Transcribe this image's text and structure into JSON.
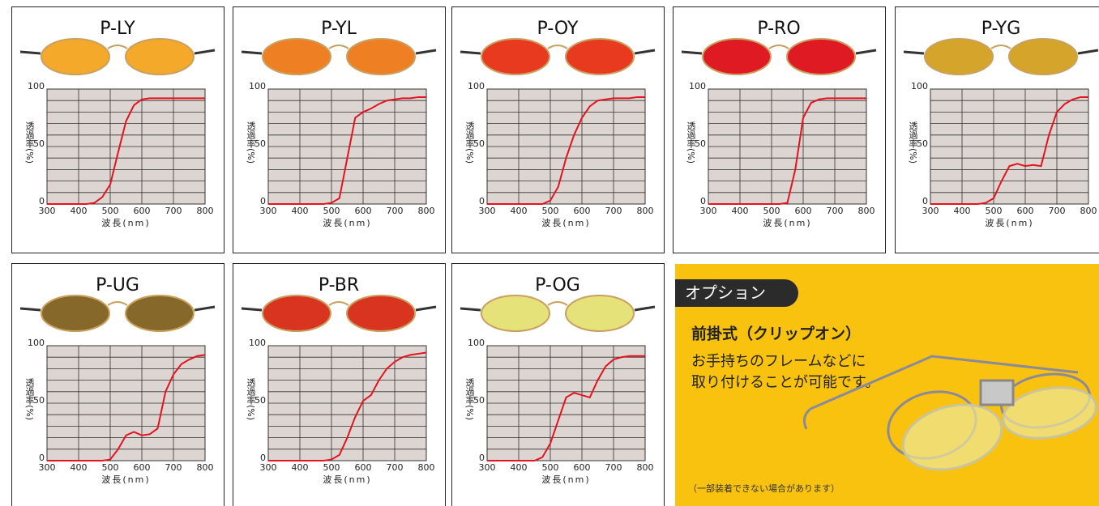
{
  "chart_data": [
    {
      "type": "line",
      "title": "P-LY",
      "lens_color": "#f4a92a",
      "plot_color": "#dcd5d1",
      "grid": true,
      "x_label": "波長(nm)",
      "y_label": "透過率(%)",
      "x": [
        300,
        325,
        350,
        375,
        400,
        425,
        450,
        475,
        500,
        525,
        550,
        575,
        600,
        625,
        650,
        675,
        700,
        725,
        750,
        775,
        800
      ],
      "series": [
        {
          "color": "#e3141e",
          "values": [
            0,
            0,
            0,
            0,
            0,
            0,
            1,
            6,
            17,
            45,
            72,
            86,
            91,
            92,
            92,
            92,
            92,
            92,
            92,
            92,
            92
          ]
        }
      ],
      "xlim": [
        300,
        800
      ],
      "xticks": [
        300,
        400,
        500,
        600,
        700,
        800
      ],
      "ylim": [
        0,
        100
      ],
      "yticks": [
        0,
        50,
        100
      ],
      "minor_yticks": [
        10,
        20,
        30,
        40,
        60,
        70,
        80,
        90
      ]
    },
    {
      "type": "line",
      "title": "P-YL",
      "lens_color": "#ee7f22",
      "plot_color": "#dcd5d1",
      "grid": true,
      "x_label": "波長(nm)",
      "y_label": "透過率(%)",
      "x": [
        300,
        325,
        350,
        375,
        400,
        425,
        450,
        475,
        500,
        525,
        550,
        575,
        600,
        625,
        650,
        675,
        700,
        725,
        750,
        775,
        800
      ],
      "series": [
        {
          "color": "#e3141e",
          "values": [
            0,
            0,
            0,
            0,
            0,
            0,
            0,
            0,
            1,
            5,
            40,
            75,
            80,
            83,
            87,
            90,
            91,
            92,
            92,
            93,
            93
          ]
        }
      ],
      "xlim": [
        300,
        800
      ],
      "xticks": [
        300,
        400,
        500,
        600,
        700,
        800
      ],
      "ylim": [
        0,
        100
      ],
      "yticks": [
        0,
        50,
        100
      ],
      "minor_yticks": [
        10,
        20,
        30,
        40,
        60,
        70,
        80,
        90
      ]
    },
    {
      "type": "line",
      "title": "P-OY",
      "lens_color": "#e73a1f",
      "plot_color": "#dcd5d1",
      "grid": true,
      "x_label": "波長(nm)",
      "y_label": "透過率(%)",
      "x": [
        300,
        325,
        350,
        375,
        400,
        425,
        450,
        475,
        500,
        525,
        550,
        575,
        600,
        625,
        650,
        675,
        700,
        725,
        750,
        775,
        800
      ],
      "series": [
        {
          "color": "#e3141e",
          "values": [
            0,
            0,
            0,
            0,
            0,
            0,
            0,
            0,
            3,
            15,
            40,
            60,
            75,
            85,
            90,
            91,
            92,
            92,
            92,
            93,
            93
          ]
        }
      ],
      "xlim": [
        300,
        800
      ],
      "xticks": [
        300,
        400,
        500,
        600,
        700,
        800
      ],
      "ylim": [
        0,
        100
      ],
      "yticks": [
        0,
        50,
        100
      ],
      "minor_yticks": [
        10,
        20,
        30,
        40,
        60,
        70,
        80,
        90
      ]
    },
    {
      "type": "line",
      "title": "P-RO",
      "lens_color": "#e01a22",
      "plot_color": "#dcd5d1",
      "grid": true,
      "x_label": "波長(nm)",
      "y_label": "透過率(%)",
      "x": [
        300,
        325,
        350,
        375,
        400,
        425,
        450,
        475,
        500,
        525,
        550,
        575,
        600,
        625,
        650,
        675,
        700,
        725,
        750,
        775,
        800
      ],
      "series": [
        {
          "color": "#e3141e",
          "values": [
            0,
            0,
            0,
            0,
            0,
            0,
            0,
            0,
            0,
            0,
            1,
            30,
            75,
            88,
            91,
            92,
            92,
            92,
            92,
            92,
            92
          ]
        }
      ],
      "xlim": [
        300,
        800
      ],
      "xticks": [
        300,
        400,
        500,
        600,
        700,
        800
      ],
      "ylim": [
        0,
        100
      ],
      "yticks": [
        0,
        50,
        100
      ],
      "minor_yticks": [
        10,
        20,
        30,
        40,
        60,
        70,
        80,
        90
      ]
    },
    {
      "type": "line",
      "title": "P-YG",
      "lens_color": "#d4a52a",
      "plot_color": "#dcd5d1",
      "grid": true,
      "x_label": "波長(nm)",
      "y_label": "透過率(%)",
      "x": [
        300,
        325,
        350,
        375,
        400,
        425,
        450,
        475,
        500,
        525,
        550,
        575,
        600,
        625,
        650,
        675,
        700,
        725,
        750,
        775,
        800
      ],
      "series": [
        {
          "color": "#e3141e",
          "values": [
            0,
            0,
            0,
            0,
            0,
            0,
            0,
            1,
            5,
            20,
            33,
            35,
            33,
            34,
            33,
            60,
            80,
            87,
            91,
            93,
            93
          ]
        }
      ],
      "xlim": [
        300,
        800
      ],
      "xticks": [
        300,
        400,
        500,
        600,
        700,
        800
      ],
      "ylim": [
        0,
        100
      ],
      "yticks": [
        0,
        50,
        100
      ],
      "minor_yticks": [
        10,
        20,
        30,
        40,
        60,
        70,
        80,
        90
      ]
    },
    {
      "type": "line",
      "title": "P-UG",
      "lens_color": "#86682a",
      "plot_color": "#dcd5d1",
      "grid": true,
      "x_label": "波長(nm)",
      "y_label": "透過率(%)",
      "x": [
        300,
        325,
        350,
        375,
        400,
        425,
        450,
        475,
        500,
        525,
        550,
        575,
        600,
        625,
        650,
        675,
        700,
        725,
        750,
        775,
        800
      ],
      "series": [
        {
          "color": "#e3141e",
          "values": [
            0,
            0,
            0,
            0,
            0,
            0,
            0,
            0,
            1,
            10,
            22,
            25,
            22,
            23,
            28,
            60,
            75,
            84,
            88,
            91,
            92
          ]
        }
      ],
      "xlim": [
        300,
        800
      ],
      "xticks": [
        300,
        400,
        500,
        600,
        700,
        800
      ],
      "ylim": [
        0,
        100
      ],
      "yticks": [
        0,
        50,
        100
      ],
      "minor_yticks": [
        10,
        20,
        30,
        40,
        60,
        70,
        80,
        90
      ]
    },
    {
      "type": "line",
      "title": "P-BR",
      "lens_color": "#d83420",
      "plot_color": "#dcd5d1",
      "grid": true,
      "x_label": "波長(nm)",
      "y_label": "透過率(%)",
      "x": [
        300,
        325,
        350,
        375,
        400,
        425,
        450,
        475,
        500,
        525,
        550,
        575,
        600,
        625,
        650,
        675,
        700,
        725,
        750,
        775,
        800
      ],
      "series": [
        {
          "color": "#e3141e",
          "values": [
            0,
            0,
            0,
            0,
            0,
            0,
            0,
            0,
            1,
            5,
            20,
            38,
            52,
            57,
            70,
            80,
            86,
            90,
            92,
            93,
            94
          ]
        }
      ],
      "xlim": [
        300,
        800
      ],
      "xticks": [
        300,
        400,
        500,
        600,
        700,
        800
      ],
      "ylim": [
        0,
        100
      ],
      "yticks": [
        0,
        50,
        100
      ],
      "minor_yticks": [
        10,
        20,
        30,
        40,
        60,
        70,
        80,
        90
      ]
    },
    {
      "type": "line",
      "title": "P-OG",
      "lens_color": "#e6e27a",
      "plot_color": "#dcd5d1",
      "grid": true,
      "x_label": "波長(nm)",
      "y_label": "透過率(%)",
      "x": [
        300,
        325,
        350,
        375,
        400,
        425,
        450,
        475,
        500,
        525,
        550,
        575,
        600,
        625,
        650,
        675,
        700,
        725,
        750,
        775,
        800
      ],
      "series": [
        {
          "color": "#e3141e",
          "values": [
            0,
            0,
            0,
            0,
            0,
            0,
            0,
            3,
            15,
            35,
            55,
            59,
            57,
            55,
            70,
            82,
            88,
            90,
            91,
            91,
            91
          ]
        }
      ],
      "xlim": [
        300,
        800
      ],
      "xticks": [
        300,
        400,
        500,
        600,
        700,
        800
      ],
      "ylim": [
        0,
        100
      ],
      "yticks": [
        0,
        50,
        100
      ],
      "minor_yticks": [
        10,
        20,
        30,
        40,
        60,
        70,
        80,
        90
      ]
    }
  ],
  "option": {
    "badge": "オプション",
    "heading": "前掛式（クリップオン）",
    "lines": [
      "お手持ちのフレームなどに",
      "取り付けることが可能です。"
    ],
    "note": "（一部装着できない場合があります）"
  }
}
